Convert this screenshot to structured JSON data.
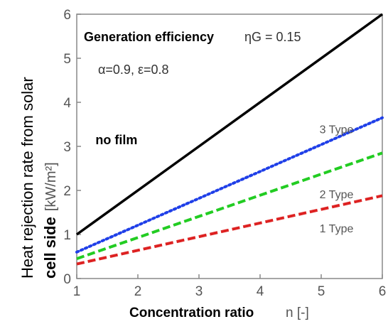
{
  "chart_data": {
    "type": "line",
    "xlabel": "Concentration ratio",
    "xlabel_unit": "n [-]",
    "ylabel_line1": "Heat rejection rate from solar",
    "ylabel_line2_bold": "cell side",
    "ylabel_line2_unit": "[kW/m²]",
    "xlim": [
      1,
      6
    ],
    "ylim": [
      0,
      6
    ],
    "xticks": [
      "1",
      "2",
      "3",
      "4",
      "5",
      "6"
    ],
    "yticks": [
      "0",
      "1",
      "2",
      "3",
      "4",
      "5",
      "6"
    ],
    "grid": false,
    "annotations": {
      "efficiency_label": "Generation efficiency",
      "efficiency_value": "ηG = 0.15",
      "emissivity": "α=0.9, ε=0.8"
    },
    "series": [
      {
        "name": "no film",
        "style": "solid",
        "color": "#000000",
        "x": [
          1,
          6
        ],
        "y": [
          1.0,
          6.0
        ]
      },
      {
        "name": "3 Type",
        "style": "dotted",
        "color": "#1f3fe8",
        "x": [
          1,
          6
        ],
        "y": [
          0.6,
          3.65
        ]
      },
      {
        "name": "2 Type",
        "style": "dashed",
        "color": "#22cc22",
        "x": [
          1,
          6
        ],
        "y": [
          0.45,
          2.85
        ]
      },
      {
        "name": "1 Type",
        "style": "dashed",
        "color": "#dd2222",
        "x": [
          1,
          6
        ],
        "y": [
          0.33,
          1.88
        ]
      }
    ],
    "series_label_positions": [
      {
        "x": 1.65,
        "y": 3.05
      },
      {
        "x": 5.25,
        "y": 3.3
      },
      {
        "x": 5.25,
        "y": 1.82
      },
      {
        "x": 5.25,
        "y": 1.05
      }
    ]
  }
}
